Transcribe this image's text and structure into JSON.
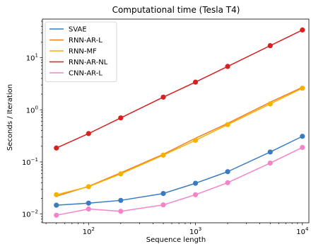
{
  "chart_data": {
    "type": "line",
    "title": "Computational time (Tesla T4)",
    "xlabel": "Sequence length",
    "ylabel": "Seconds / Iteration",
    "xscale": "log",
    "yscale": "log",
    "xlim": [
      37,
      11500
    ],
    "ylim": [
      0.0068,
      55
    ],
    "grid": false,
    "legend_position": "top-left",
    "x": [
      50,
      100,
      200,
      500,
      1000,
      2000,
      5000,
      10000
    ],
    "x_tick_labels": [
      {
        "base": "10",
        "exp": "2",
        "value": 100
      },
      {
        "base": "10",
        "exp": "3",
        "value": 1000
      },
      {
        "base": "10",
        "exp": "4",
        "value": 10000
      }
    ],
    "y_tick_labels": [
      {
        "base": "10",
        "exp": "−2",
        "value": 0.01
      },
      {
        "base": "10",
        "exp": "−1",
        "value": 0.1
      },
      {
        "base": "10",
        "exp": "0",
        "value": 1
      },
      {
        "base": "10",
        "exp": "1",
        "value": 10
      }
    ],
    "series": [
      {
        "name": "SVAE",
        "color": "#3a7bbf",
        "marker": true,
        "values": [
          0.0148,
          0.0162,
          0.0183,
          0.0248,
          0.039,
          0.065,
          0.155,
          0.31
        ]
      },
      {
        "name": "RNN-AR-L",
        "color": "#f57f1f",
        "marker": false,
        "values": [
          0.022,
          0.034,
          0.062,
          0.14,
          0.285,
          0.55,
          1.4,
          2.7
        ]
      },
      {
        "name": "RNN-MF",
        "color": "#f5b000",
        "marker": true,
        "values": [
          0.0235,
          0.0335,
          0.059,
          0.135,
          0.26,
          0.52,
          1.3,
          2.6
        ]
      },
      {
        "name": "RNN-AR-NL",
        "color": "#d91f1f",
        "marker": true,
        "values": [
          0.185,
          0.35,
          0.7,
          1.75,
          3.4,
          6.8,
          17,
          34
        ]
      },
      {
        "name": "CNN-AR-L",
        "color": "#f583c8",
        "marker": true,
        "values": [
          0.0095,
          0.0125,
          0.0113,
          0.015,
          0.0235,
          0.04,
          0.095,
          0.19
        ]
      }
    ]
  }
}
